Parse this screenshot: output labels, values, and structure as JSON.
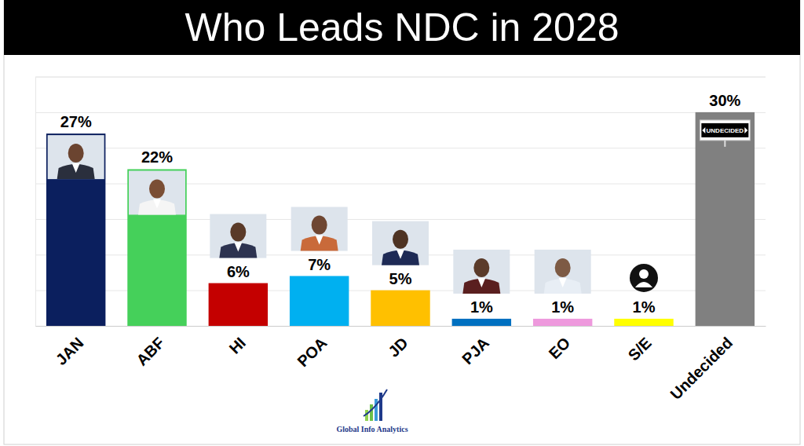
{
  "chart_data": {
    "type": "bar",
    "title": "Who Leads NDC in 2028",
    "categories": [
      "JAN",
      "ABF",
      "HI",
      "POA",
      "JD",
      "PJA",
      "EO",
      "S/E",
      "Undecided"
    ],
    "values": [
      27,
      22,
      6,
      7,
      5,
      1,
      1,
      1,
      30
    ],
    "value_labels": [
      "27%",
      "22%",
      "6%",
      "7%",
      "5%",
      "1%",
      "1%",
      "1%",
      "30%"
    ],
    "colors": [
      "#0b1f5e",
      "#45d05a",
      "#c40000",
      "#00b0f0",
      "#ffc000",
      "#0070c0",
      "#ee99dd",
      "#ffff00",
      "#808080"
    ],
    "ylim": [
      0,
      35
    ],
    "yticks": [
      0,
      5,
      10,
      15,
      20,
      25,
      30,
      35
    ],
    "grid": true,
    "tick_labels": "x",
    "data_labels": true,
    "annotations": [
      "UNDECIDED"
    ],
    "source": "Global Info Analytics"
  }
}
